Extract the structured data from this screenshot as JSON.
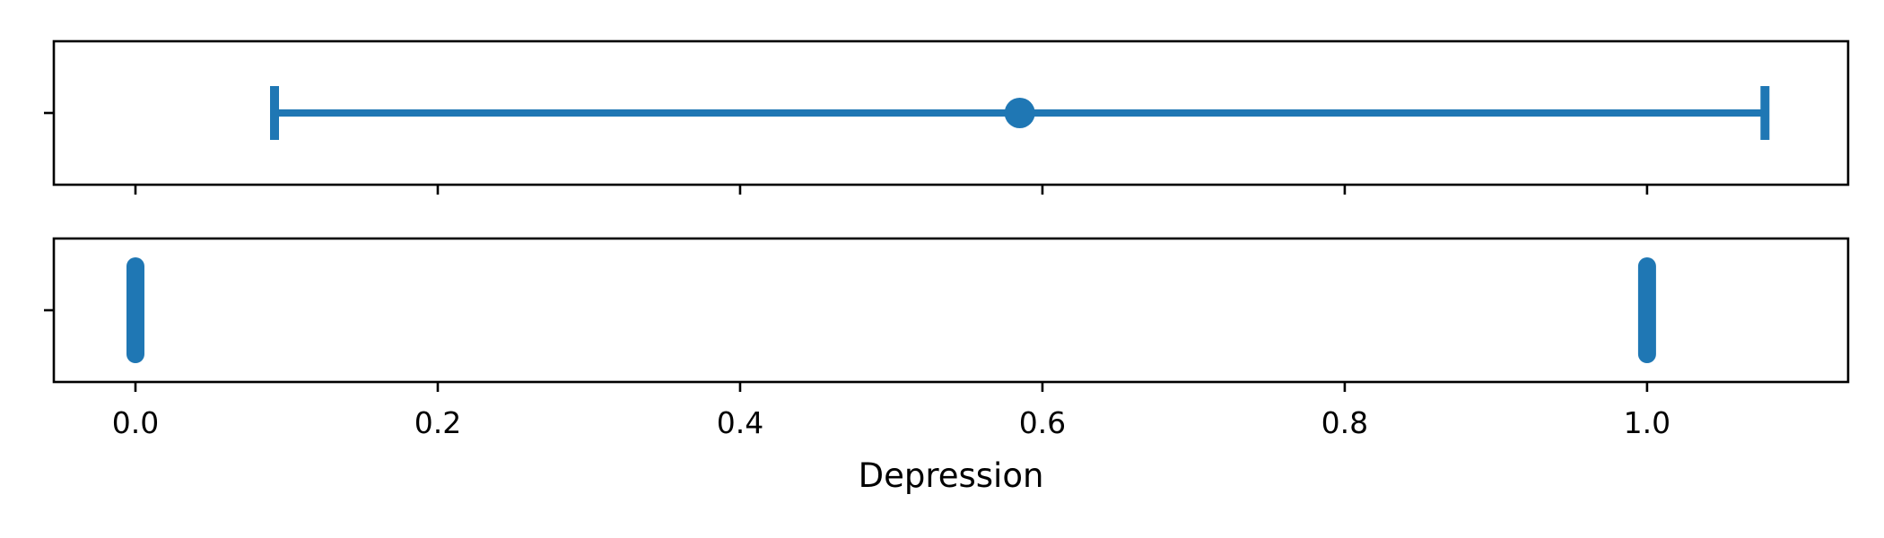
{
  "chart_data": [
    {
      "type": "errorbar",
      "mean": 0.585,
      "error_low": 0.092,
      "error_high": 1.078,
      "xlim": [
        -0.054,
        1.133
      ],
      "color": "#1f77b4",
      "grid": false
    },
    {
      "type": "scatter",
      "x": [
        0.0,
        1.0
      ],
      "xlim": [
        -0.054,
        1.133
      ],
      "xlabel": "Depression",
      "xticks": [
        0.0,
        0.2,
        0.4,
        0.6,
        0.8,
        1.0
      ],
      "xtick_labels": [
        "0.0",
        "0.2",
        "0.4",
        "0.6",
        "0.8",
        "1.0"
      ],
      "color": "#1f77b4",
      "grid": false
    }
  ]
}
